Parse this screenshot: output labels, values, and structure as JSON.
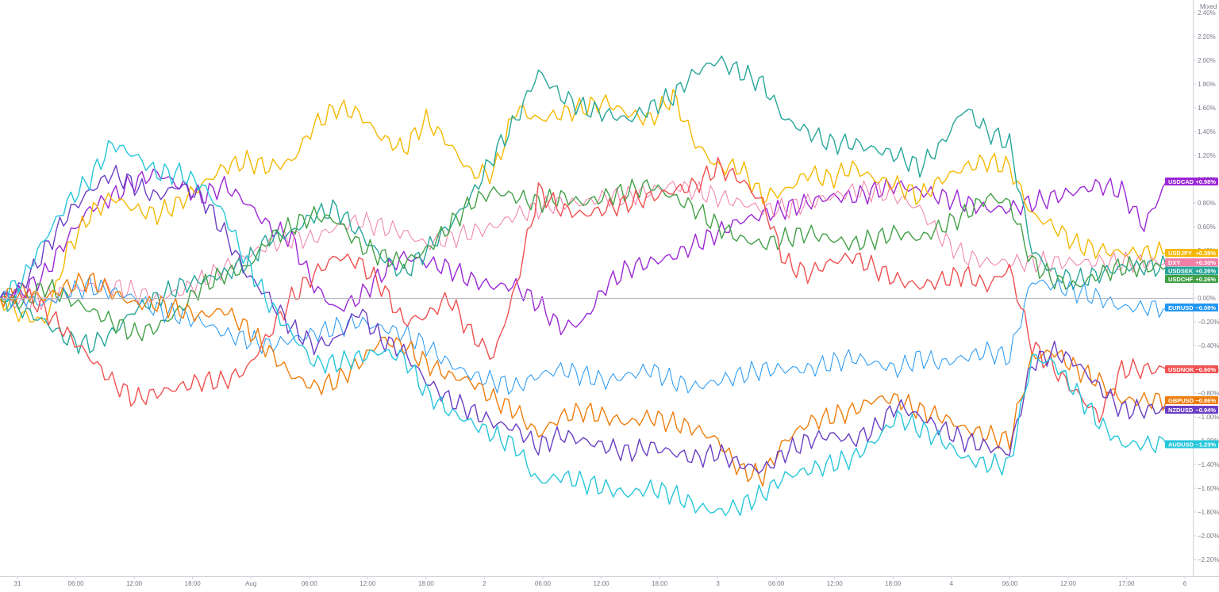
{
  "chart_data": {
    "type": "line",
    "scale_mode": "Mixed",
    "y_unit": "%",
    "ylim": [
      -2.4,
      2.4
    ],
    "y_ticks": [
      "2.40%",
      "2.20%",
      "2.00%",
      "1.80%",
      "1.60%",
      "1.40%",
      "1.20%",
      "1.00%",
      "0.80%",
      "0.60%",
      "0.40%",
      "0.20%",
      "0.00%",
      "−0.20%",
      "−0.40%",
      "−0.60%",
      "−0.80%",
      "−1.00%",
      "−1.20%",
      "−1.40%",
      "−1.60%",
      "−1.80%",
      "−2.00%",
      "−2.20%"
    ],
    "x_ticks": [
      "31",
      "06:00",
      "12:00",
      "18:00",
      "Aug",
      "06:00",
      "12:00",
      "18:00",
      "2",
      "06:00",
      "12:00",
      "18:00",
      "3",
      "06:00",
      "12:00",
      "18:00",
      "4",
      "06:00",
      "12:00",
      "17:00",
      "6"
    ],
    "baseline": 0,
    "series": [
      {
        "name": "USDCAD",
        "color": "#9c27d6",
        "last_label": "+0.98%",
        "last": 0.98,
        "points": [
          0,
          0.05,
          0.2,
          0.5,
          0.75,
          0.85,
          0.98,
          1.05,
          0.95,
          0.85,
          0.95,
          0.8,
          0.6,
          0.5,
          0.1,
          -0.1,
          0.0,
          0.2,
          0.35,
          0.3,
          0.25,
          0.15,
          0.1,
          0.1,
          -0.05,
          -0.25,
          -0.2,
          0.1,
          0.25,
          0.3,
          0.35,
          0.45,
          0.55,
          0.65,
          0.7,
          0.75,
          0.8,
          0.85,
          0.85,
          0.9,
          0.95,
          0.9,
          0.85,
          0.8,
          0.75,
          0.75,
          0.8,
          0.85,
          0.9,
          0.95,
          0.9,
          0.6,
          0.98
        ]
      },
      {
        "name": "USDJPY",
        "color": "#f5b800",
        "last_label": "+0.38%",
        "last": 0.38,
        "points": [
          0,
          -0.15,
          -0.2,
          0.4,
          0.7,
          0.85,
          0.75,
          0.7,
          0.8,
          0.95,
          1.1,
          1.15,
          1.1,
          1.15,
          1.45,
          1.6,
          1.55,
          1.35,
          1.25,
          1.5,
          1.3,
          1.05,
          1.05,
          1.6,
          1.5,
          1.55,
          1.6,
          1.65,
          1.55,
          1.5,
          1.7,
          1.3,
          1.1,
          1.1,
          0.85,
          0.9,
          1.05,
          1.0,
          1.1,
          1.0,
          0.95,
          0.85,
          1.0,
          1.1,
          1.15,
          1.1,
          0.7,
          0.6,
          0.45,
          0.4,
          0.38,
          0.38,
          0.38
        ]
      },
      {
        "name": "DXY",
        "color": "#f07fa8",
        "last_label": "+0.30%",
        "last": 0.3,
        "points": [
          0,
          -0.05,
          0.0,
          0.05,
          0.1,
          0.1,
          0.05,
          0.0,
          0.05,
          0.15,
          0.25,
          0.35,
          0.45,
          0.5,
          0.5,
          0.6,
          0.65,
          0.6,
          0.55,
          0.45,
          0.5,
          0.55,
          0.6,
          0.7,
          0.75,
          0.8,
          0.8,
          0.85,
          0.85,
          0.9,
          0.95,
          0.9,
          0.85,
          0.8,
          0.75,
          0.75,
          0.8,
          0.85,
          0.9,
          0.9,
          0.85,
          0.75,
          0.5,
          0.35,
          0.3,
          0.3,
          0.3,
          0.3,
          0.3,
          0.3,
          0.3,
          0.3,
          0.3
        ]
      },
      {
        "name": "USDSEK",
        "color": "#26a69a",
        "last_label": "+0.26%",
        "last": 0.26,
        "points": [
          0,
          -0.1,
          -0.2,
          -0.35,
          -0.4,
          -0.3,
          -0.1,
          0.0,
          0.1,
          0.15,
          0.2,
          0.3,
          0.5,
          0.55,
          0.7,
          0.75,
          0.55,
          0.35,
          0.2,
          0.4,
          0.6,
          0.85,
          1.2,
          1.5,
          1.9,
          1.7,
          1.6,
          1.55,
          1.5,
          1.6,
          1.7,
          1.9,
          2.0,
          1.9,
          1.8,
          1.5,
          1.4,
          1.3,
          1.3,
          1.25,
          1.2,
          1.1,
          1.3,
          1.6,
          1.4,
          1.3,
          0.4,
          0.2,
          0.15,
          0.2,
          0.26,
          0.26,
          0.26
        ]
      },
      {
        "name": "USDCHF",
        "color": "#43a047",
        "last_label": "+0.26%",
        "last": 0.26,
        "points": [
          0,
          -0.05,
          0.1,
          0.0,
          -0.1,
          -0.2,
          -0.3,
          -0.25,
          -0.1,
          0.1,
          0.2,
          0.25,
          0.5,
          0.6,
          0.7,
          0.65,
          0.45,
          0.35,
          0.3,
          0.4,
          0.6,
          0.8,
          0.9,
          0.85,
          0.8,
          0.85,
          0.8,
          0.85,
          0.9,
          0.95,
          0.85,
          0.75,
          0.6,
          0.5,
          0.45,
          0.5,
          0.55,
          0.5,
          0.45,
          0.5,
          0.55,
          0.5,
          0.6,
          0.7,
          0.85,
          0.8,
          0.3,
          0.15,
          0.1,
          0.2,
          0.26,
          0.26,
          0.26
        ]
      },
      {
        "name": "EURUSD",
        "color": "#2196f3",
        "last_label": "−0.08%",
        "last": -0.08,
        "points": [
          0,
          0.0,
          -0.05,
          0.05,
          0.1,
          0.05,
          0.0,
          -0.1,
          -0.15,
          -0.2,
          -0.3,
          -0.35,
          -0.4,
          -0.35,
          -0.3,
          -0.25,
          -0.2,
          -0.25,
          -0.3,
          -0.4,
          -0.55,
          -0.65,
          -0.7,
          -0.75,
          -0.65,
          -0.6,
          -0.65,
          -0.7,
          -0.65,
          -0.6,
          -0.7,
          -0.75,
          -0.7,
          -0.65,
          -0.6,
          -0.6,
          -0.6,
          -0.55,
          -0.5,
          -0.55,
          -0.6,
          -0.5,
          -0.55,
          -0.5,
          -0.45,
          -0.5,
          0.15,
          0.1,
          0.05,
          0.0,
          -0.08,
          -0.08,
          -0.08
        ]
      },
      {
        "name": "USDNOK",
        "color": "#f05050",
        "last_label": "−0.60%",
        "last": -0.6,
        "points": [
          0,
          0.05,
          -0.1,
          -0.3,
          -0.5,
          -0.7,
          -0.85,
          -0.8,
          -0.75,
          -0.7,
          -0.7,
          -0.6,
          -0.3,
          0.0,
          0.2,
          0.35,
          0.3,
          0.1,
          -0.2,
          -0.15,
          0.0,
          -0.3,
          -0.5,
          0.1,
          0.9,
          0.75,
          0.7,
          0.75,
          0.8,
          0.85,
          0.9,
          0.95,
          1.1,
          1.0,
          0.8,
          0.3,
          0.2,
          0.3,
          0.35,
          0.25,
          0.15,
          0.1,
          0.15,
          0.2,
          0.1,
          0.25,
          -0.4,
          -0.6,
          -0.8,
          -1.0,
          -0.6,
          -0.6,
          -0.6
        ]
      },
      {
        "name": "GBPUSD",
        "color": "#ef7d0c",
        "last_label": "−0.86%",
        "last": -0.86,
        "points": [
          0,
          0.05,
          0.0,
          0.1,
          0.15,
          0.05,
          -0.05,
          -0.05,
          -0.1,
          -0.15,
          -0.1,
          -0.25,
          -0.45,
          -0.65,
          -0.75,
          -0.7,
          -0.55,
          -0.35,
          -0.4,
          -0.55,
          -0.65,
          -0.7,
          -0.85,
          -0.95,
          -1.15,
          -1.0,
          -0.95,
          -1.0,
          -1.05,
          -1.0,
          -1.05,
          -1.1,
          -1.2,
          -1.45,
          -1.5,
          -1.2,
          -1.05,
          -1.0,
          -0.95,
          -0.85,
          -0.85,
          -0.95,
          -1.0,
          -1.1,
          -1.15,
          -1.2,
          -0.5,
          -0.45,
          -0.6,
          -0.7,
          -0.86,
          -0.86,
          -0.86
        ]
      },
      {
        "name": "NZDUSD",
        "color": "#6a3fc4",
        "last_label": "−0.94%",
        "last": -0.94,
        "points": [
          0,
          0.1,
          0.4,
          0.7,
          0.9,
          1.05,
          0.95,
          0.85,
          0.95,
          0.85,
          0.55,
          0.2,
          0.0,
          -0.25,
          -0.4,
          -0.35,
          -0.1,
          -0.35,
          -0.45,
          -0.7,
          -0.85,
          -0.95,
          -1.05,
          -1.1,
          -1.25,
          -1.15,
          -1.2,
          -1.25,
          -1.3,
          -1.25,
          -1.3,
          -1.35,
          -1.3,
          -1.4,
          -1.45,
          -1.3,
          -1.2,
          -1.15,
          -1.2,
          -1.1,
          -0.9,
          -1.0,
          -1.1,
          -1.2,
          -1.25,
          -1.3,
          -0.55,
          -0.45,
          -0.55,
          -0.75,
          -0.94,
          -0.94,
          -0.94
        ]
      },
      {
        "name": "AUDUSD",
        "color": "#26c6da",
        "last_label": "−1.23%",
        "last": -1.23,
        "points": [
          0,
          0.15,
          0.5,
          0.8,
          1.0,
          1.3,
          1.2,
          1.05,
          1.05,
          0.95,
          0.7,
          0.3,
          -0.05,
          -0.3,
          -0.55,
          -0.55,
          -0.5,
          -0.45,
          -0.5,
          -0.8,
          -0.95,
          -1.05,
          -1.15,
          -1.25,
          -1.55,
          -1.5,
          -1.55,
          -1.6,
          -1.65,
          -1.6,
          -1.65,
          -1.75,
          -1.8,
          -1.75,
          -1.65,
          -1.5,
          -1.45,
          -1.4,
          -1.35,
          -1.2,
          -1.0,
          -1.1,
          -1.2,
          -1.35,
          -1.4,
          -1.4,
          -0.5,
          -0.55,
          -0.8,
          -1.05,
          -1.23,
          -1.23,
          -1.23
        ]
      }
    ]
  }
}
